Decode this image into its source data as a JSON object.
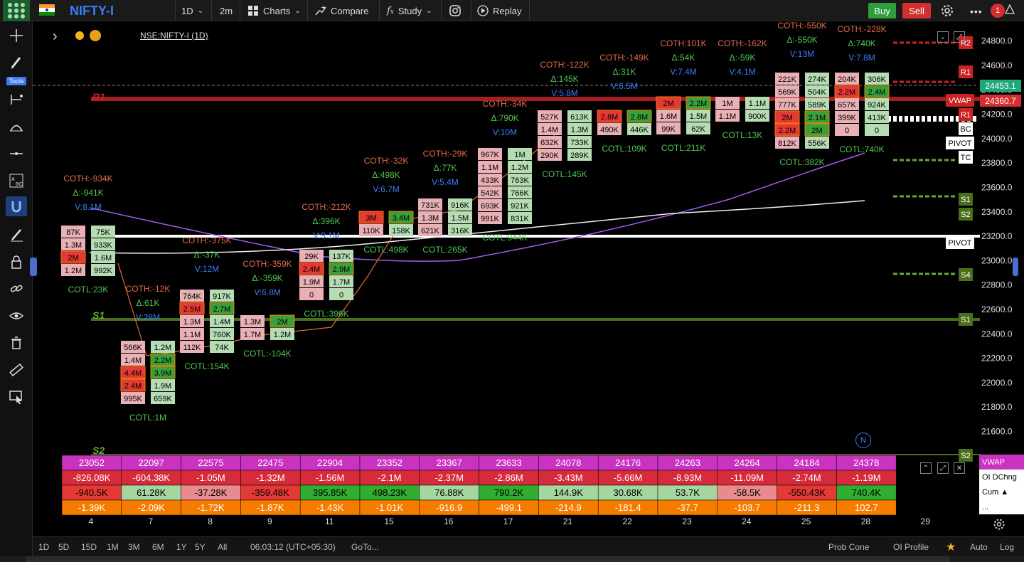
{
  "topbar": {
    "symbol": "NIFTY-I",
    "interval": "1D",
    "timeframe": "2m",
    "charts_label": "Charts",
    "compare_label": "Compare",
    "study_label": "Study",
    "replay_label": "Replay",
    "buy_label": "Buy",
    "sell_label": "Sell",
    "notification_count": "1"
  },
  "leftbar": {
    "tools_label": "Tools"
  },
  "chart_header": {
    "symbol_full": "NSE:NIFTY-I (1D)"
  },
  "bottombar": {
    "ranges": [
      "1D",
      "5D",
      "15D",
      "1M",
      "3M",
      "6M",
      "1Y",
      "5Y",
      "All"
    ],
    "clock": "06:03:12 (UTC+05:30)",
    "goto": "GoTo...",
    "prob_cone": "Prob Cone",
    "oi_profile": "OI Profile",
    "auto": "Auto",
    "log": "Log"
  },
  "subpanel_legend": [
    "VWAP",
    "OI DChng",
    "Cum ▲",
    "..."
  ],
  "colors": {
    "bg": "#000000",
    "buy": "#2e9e3e",
    "sell": "#d32f2f",
    "vwap_row": "#c933c0",
    "orange_row": "#f57c00",
    "pink_cell": "#e9b0b5",
    "green_cell": "#b6dcb4",
    "red_line": "#a61e22",
    "green_line": "#4a6e1a",
    "accent_blue": "#3d7bf5"
  },
  "chart_data": {
    "type": "footprint",
    "price_axis": {
      "ticks": [
        "24800.0",
        "24600.0",
        "24400.0",
        "24200.0",
        "24000.0",
        "23800.0",
        "23600.0",
        "23400.0",
        "23200.0",
        "23000.0",
        "22800.0",
        "22600.0",
        "22400.0",
        "22200.0",
        "22000.0",
        "21800.0",
        "21600.0"
      ],
      "last_price": "24453.1",
      "vwap_price": "24360.7",
      "range": [
        21500,
        24900
      ]
    },
    "x_labels": [
      "4",
      "7",
      "8",
      "9",
      "11",
      "15",
      "16",
      "17",
      "21",
      "22",
      "23",
      "24",
      "25",
      "28",
      "29"
    ],
    "level_tags": [
      "R2",
      "R1",
      "VWAP",
      "R1",
      "BC",
      "PIVOT",
      "TC",
      "S1",
      "S2",
      "PIVOT",
      "S4",
      "S1",
      "S2"
    ],
    "chart_letters": [
      "R1",
      "S1",
      "S2"
    ],
    "bars": [
      {
        "day": "4",
        "top": [
          "COTH:-934K",
          "Δ:-941K",
          "V:8.1M"
        ],
        "left": [
          "87K",
          "1.3M",
          "2M",
          "1.2M"
        ],
        "right": [
          "75K",
          "933K",
          "1.6M",
          "992K"
        ],
        "bottom": "COTL:23K"
      },
      {
        "day": "7",
        "top": [
          "COTH:-12K",
          "Δ:61K",
          "V:28M"
        ],
        "left": [
          "566K",
          "1.4M",
          "4.4M",
          "2.4M",
          "995K"
        ],
        "right": [
          "1.2M",
          "2.2M",
          "3.9M",
          "1.9M",
          "659K"
        ],
        "bottom": "COTL:1M"
      },
      {
        "day": "8",
        "top": [
          "COTH:-375K",
          "Δ:-37K",
          "V:12M"
        ],
        "left": [
          "764K",
          "2.5M",
          "1.3M",
          "1.1M",
          "112K"
        ],
        "right": [
          "917K",
          "2.7M",
          "1.4M",
          "760K",
          "74K"
        ],
        "bottom": "COTL:154K"
      },
      {
        "day": "9",
        "top": [
          "COTH:-359K",
          "Δ:-359K",
          "V:6.8M"
        ],
        "left": [
          "1.3M",
          "1.7M"
        ],
        "right": [
          "2M",
          "1.2M"
        ],
        "bottom": "COTL:-104K"
      },
      {
        "day": "11",
        "top": [
          "COTH:-212K",
          "Δ:396K",
          "V:9.1M"
        ],
        "left": [
          "29K",
          "2.4M",
          "1.9M",
          "0"
        ],
        "right": [
          "137K",
          "2.9M",
          "1.7M",
          "0"
        ],
        "bottom": "COTL:396K"
      },
      {
        "day": "15",
        "top": [
          "COTH:-32K",
          "Δ:498K",
          "V:6.7M"
        ],
        "left": [
          "3M",
          "110K"
        ],
        "right": [
          "3.4M",
          "158K"
        ],
        "bottom": "COTL:498K"
      },
      {
        "day": "16",
        "top": [
          "COTH:-29K",
          "Δ:77K",
          "V:5.4M"
        ],
        "left": [
          "731K",
          "1.3M",
          "621K"
        ],
        "right": [
          "916K",
          "1.5M",
          "316K"
        ],
        "bottom": "COTL:265K"
      },
      {
        "day": "17",
        "top": [
          "COTH:-34K",
          "Δ:790K",
          "V:10M"
        ],
        "left": [
          "967K",
          "1.1M",
          "433K",
          "542K",
          "693K",
          "991K"
        ],
        "right": [
          "1M",
          "1.2M",
          "763K",
          "766K",
          "921K",
          "831K"
        ],
        "bottom": "COTL:944K"
      },
      {
        "day": "21",
        "top": [
          "COTH:-122K",
          "Δ:145K",
          "V:5.8M"
        ],
        "left": [
          "527K",
          "1.4M",
          "632K",
          "290K"
        ],
        "right": [
          "613K",
          "1.3M",
          "733K",
          "289K"
        ],
        "bottom": "COTL:145K"
      },
      {
        "day": "22",
        "top": [
          "COTH:-149K",
          "Δ:31K",
          "V:6.5M"
        ],
        "left": [
          "2.8M",
          "490K"
        ],
        "right": [
          "2.8M",
          "446K"
        ],
        "bottom": "COTL:109K"
      },
      {
        "day": "23",
        "top": [
          "COTH:101K",
          "Δ:54K",
          "V:7.4M"
        ],
        "left": [
          "2M",
          "1.6M",
          "99K"
        ],
        "right": [
          "2.2M",
          "1.5M",
          "62K"
        ],
        "bottom": "COTL:211K"
      },
      {
        "day": "24",
        "top": [
          "COTH:-162K",
          "Δ:-59K",
          "V:4.1M"
        ],
        "left": [
          "1M",
          "1.1M"
        ],
        "right": [
          "1.1M",
          "900K"
        ],
        "bottom": "COTL:13K"
      },
      {
        "day": "25",
        "top": [
          "COTH:-550K",
          "Δ:-550K",
          "V:13M"
        ],
        "left": [
          "221K",
          "569K",
          "777K",
          "2M",
          "2.2M",
          "812K"
        ],
        "right": [
          "274K",
          "504K",
          "589K",
          "2.1M",
          "2M",
          "556K"
        ],
        "bottom": "COTL:382K"
      },
      {
        "day": "28",
        "top": [
          "COTH:-228K",
          "Δ:740K",
          "V:7.8M"
        ],
        "left": [
          "204K",
          "2.2M",
          "657K",
          "399K",
          "0"
        ],
        "right": [
          "306K",
          "2.4M",
          "924K",
          "413K",
          "0"
        ],
        "bottom": "COTL:740K"
      }
    ],
    "table": {
      "vwap": [
        "23052",
        "22097",
        "22575",
        "22475",
        "22904",
        "23352",
        "23367",
        "23633",
        "24078",
        "24176",
        "24263",
        "24264",
        "24184",
        "24378"
      ],
      "oi_dchng": [
        "-826.08K",
        "-604.38K",
        "-1.05M",
        "-1.32M",
        "-1.56M",
        "-2.1M",
        "-2.37M",
        "-2.86M",
        "-3.43M",
        "-5.66M",
        "-8.93M",
        "-11.09M",
        "-2.74M",
        "-1.19M"
      ],
      "cum": [
        "-940.5K",
        "61.28K",
        "-37.28K",
        "-359.48K",
        "395.85K",
        "498.23K",
        "76.88K",
        "790.2K",
        "144.9K",
        "30.68K",
        "53.7K",
        "-58.5K",
        "-550.43K",
        "740.4K"
      ],
      "delta": [
        "-1.39K",
        "-2.09K",
        "-1.72K",
        "-1.87K",
        "-1.43K",
        "-1.01K",
        "-916.9",
        "-499.1",
        "-214.9",
        "-181.4",
        "-37.7",
        "-103.7",
        "-211.3",
        "102.7"
      ]
    }
  }
}
